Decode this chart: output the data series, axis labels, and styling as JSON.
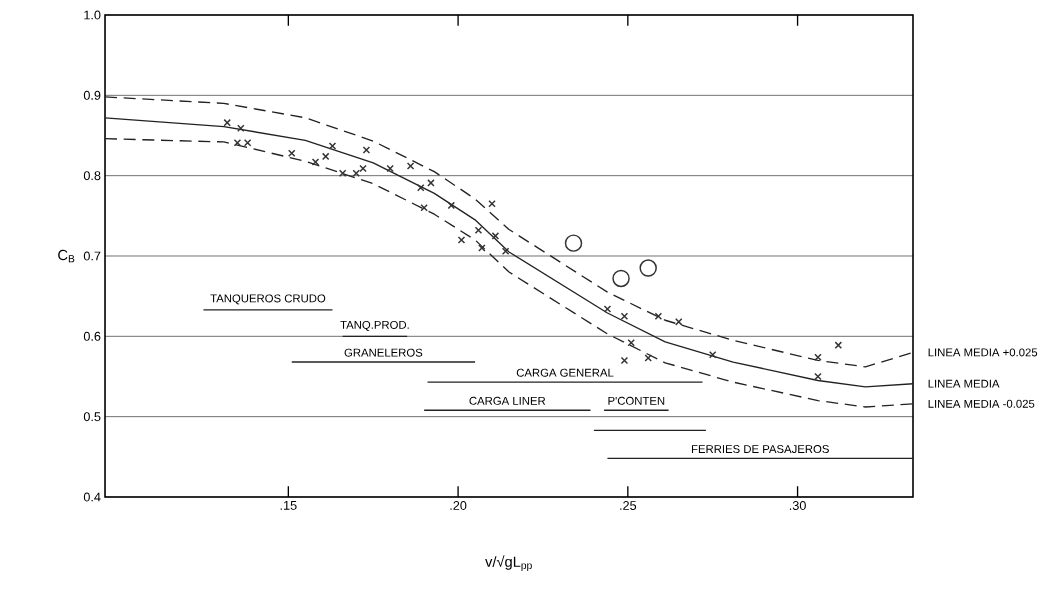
{
  "chart_data": {
    "type": "scatter",
    "xlabel": "v/√gL$_{pp}$",
    "ylabel": "C$_{B}$",
    "xlim": [
      0.096,
      0.334
    ],
    "ylim": [
      0.4,
      1.0
    ],
    "xticks": [
      {
        "value": 0.15,
        "label": ".15"
      },
      {
        "value": 0.2,
        "label": ".20"
      },
      {
        "value": 0.25,
        "label": ".25"
      },
      {
        "value": 0.3,
        "label": ".30"
      }
    ],
    "yticks": [
      0.4,
      0.5,
      0.6,
      0.7,
      0.8,
      0.9,
      {
        "value": 1.0,
        "label": "1.0"
      }
    ],
    "grid": "y",
    "marker": "cross",
    "series": [
      {
        "color": "#333333",
        "x": [
          0.132,
          0.136,
          0.135,
          0.138,
          0.151,
          0.158,
          0.161,
          0.163,
          0.166,
          0.17,
          0.173,
          0.172,
          0.18,
          0.186,
          0.189,
          0.192,
          0.19,
          0.198,
          0.201,
          0.206,
          0.207,
          0.21,
          0.211,
          0.214,
          0.244,
          0.249,
          0.259,
          0.265,
          0.251,
          0.249,
          0.256,
          0.275,
          0.306,
          0.306,
          0.312
        ],
        "values": [
          0.866,
          0.859,
          0.841,
          0.841,
          0.828,
          0.817,
          0.824,
          0.837,
          0.803,
          0.803,
          0.832,
          0.809,
          0.809,
          0.812,
          0.785,
          0.791,
          0.76,
          0.763,
          0.72,
          0.732,
          0.71,
          0.765,
          0.725,
          0.706,
          0.634,
          0.625,
          0.625,
          0.618,
          0.592,
          0.57,
          0.573,
          0.577,
          0.574,
          0.55,
          0.589
        ]
      },
      {
        "type": "scatter",
        "color": "#333333",
        "marker": "circle",
        "x": [
          0.234,
          0.248,
          0.256
        ],
        "values": [
          0.716,
          0.672,
          0.685
        ]
      },
      {
        "type": "line",
        "name": "LINEA MEDIA +0.025",
        "color": "#222222",
        "line_style": "dashed",
        "marker": "none",
        "x": [
          0.096,
          0.131,
          0.155,
          0.175,
          0.193,
          0.205,
          0.215,
          0.244,
          0.261,
          0.281,
          0.306,
          0.32,
          0.334
        ],
        "values": [
          0.898,
          0.89,
          0.872,
          0.843,
          0.805,
          0.771,
          0.733,
          0.655,
          0.62,
          0.595,
          0.57,
          0.562,
          0.58
        ]
      },
      {
        "type": "line",
        "name": "LINEA MEDIA",
        "color": "#222222",
        "line_style": "solid",
        "marker": "none",
        "x": [
          0.096,
          0.131,
          0.155,
          0.175,
          0.193,
          0.205,
          0.215,
          0.244,
          0.261,
          0.281,
          0.306,
          0.32,
          0.334
        ],
        "values": [
          0.872,
          0.861,
          0.844,
          0.816,
          0.778,
          0.745,
          0.705,
          0.629,
          0.593,
          0.568,
          0.545,
          0.537,
          0.541
        ]
      },
      {
        "type": "line",
        "name": "LINEA MEDIA -0.025",
        "color": "#222222",
        "line_style": "dashed",
        "marker": "none",
        "x": [
          0.096,
          0.131,
          0.155,
          0.175,
          0.193,
          0.205,
          0.215,
          0.244,
          0.261,
          0.281,
          0.306,
          0.32,
          0.334
        ],
        "values": [
          0.846,
          0.842,
          0.818,
          0.79,
          0.752,
          0.72,
          0.68,
          0.603,
          0.567,
          0.543,
          0.52,
          0.512,
          0.516
        ]
      },
      {
        "type": "line",
        "name": "TANQUEROS CRUDO",
        "color": "#222222",
        "marker": "none",
        "x": [
          0.125,
          0.163
        ],
        "values": [
          0.633,
          0.633
        ]
      },
      {
        "type": "line",
        "name": "TANQ.PROD.",
        "color": "#222222",
        "marker": "none",
        "x": [
          0.166,
          0.185
        ],
        "values": [
          0.6,
          0.6
        ]
      },
      {
        "type": "line",
        "name": "GRANELEROS",
        "color": "#222222",
        "marker": "none",
        "x": [
          0.151,
          0.205
        ],
        "values": [
          0.568,
          0.568
        ]
      },
      {
        "type": "line",
        "name": "CARGA GENERAL",
        "color": "#222222",
        "marker": "none",
        "x": [
          0.191,
          0.272
        ],
        "values": [
          0.543,
          0.543
        ]
      },
      {
        "type": "line",
        "name": "CARGA LINER",
        "color": "#222222",
        "marker": "none",
        "x": [
          0.19,
          0.239
        ],
        "values": [
          0.508,
          0.508
        ]
      },
      {
        "type": "line",
        "name": "P'CONTEN",
        "color": "#222222",
        "marker": "none",
        "x": [
          0.243,
          0.262
        ],
        "values": [
          0.508,
          0.508
        ]
      },
      {
        "type": "line",
        "color": "#222222",
        "marker": "none",
        "x": [
          0.24,
          0.273
        ],
        "values": [
          0.483,
          0.483
        ]
      },
      {
        "type": "line",
        "name": "FERRIES DE PASAJEROS",
        "color": "#222222",
        "marker": "none",
        "x": [
          0.244,
          0.334
        ],
        "values": [
          0.448,
          0.448
        ]
      }
    ]
  }
}
